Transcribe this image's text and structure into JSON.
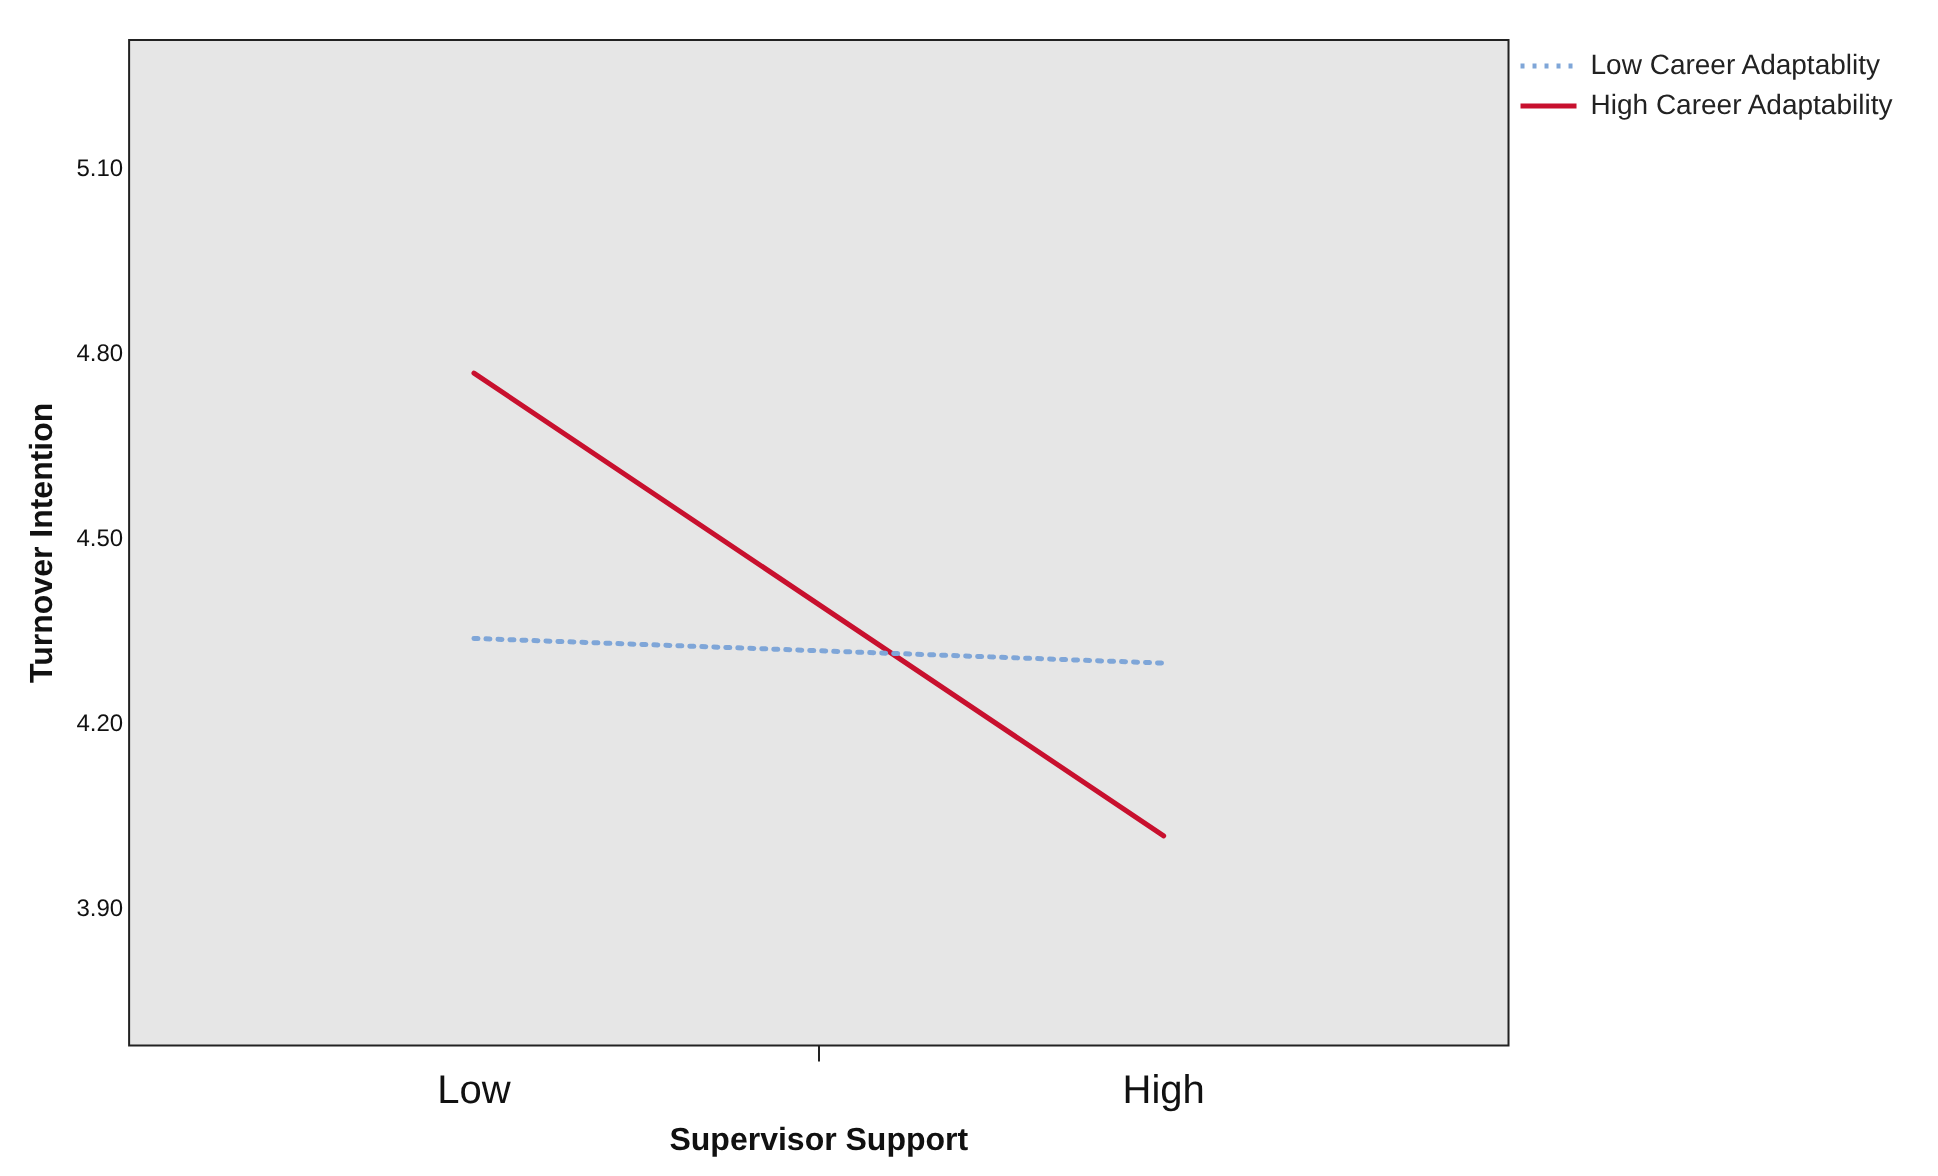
{
  "chart_data": {
    "type": "line",
    "xlabel": "Supervisor Support",
    "ylabel": "Turnover Intention",
    "categories": [
      "Low",
      "High"
    ],
    "ylim": [
      3.68,
      5.31
    ],
    "yticks": [
      {
        "value": 3.9,
        "label": "3.90"
      },
      {
        "value": 4.2,
        "label": "4.20"
      },
      {
        "value": 4.5,
        "label": "4.50"
      },
      {
        "value": 4.8,
        "label": "4.80"
      },
      {
        "value": 5.1,
        "label": "5.10"
      }
    ],
    "series": [
      {
        "name": "Low Career Adaptablity",
        "color": "#7fa6d8",
        "line_style": "dotted",
        "values": [
          4.34,
          4.3
        ]
      },
      {
        "name": "High Career Adaptability",
        "color": "#c8102e",
        "line_style": "solid",
        "values": [
          4.77,
          4.02
        ]
      }
    ],
    "grid": false,
    "legend": "top right",
    "marker": "none"
  }
}
